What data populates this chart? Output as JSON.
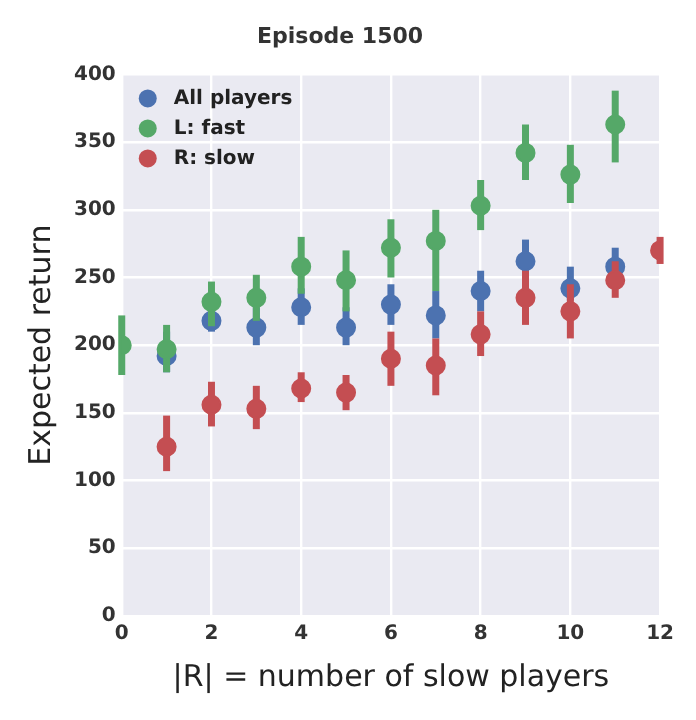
{
  "chart_data": {
    "type": "scatter",
    "title": "Episode 1500",
    "xlabel": "|R| = number of slow players",
    "ylabel": "Expected return",
    "x": [
      0,
      1,
      2,
      3,
      4,
      5,
      6,
      7,
      8,
      9,
      10,
      11,
      12
    ],
    "series": [
      {
        "name": "All players",
        "color": "#4c72b0",
        "values": [
          null,
          192,
          218,
          213,
          228,
          213,
          230,
          222,
          240,
          262,
          242,
          258,
          null
        ],
        "errors": [
          null,
          [
            180,
            210
          ],
          [
            210,
            228
          ],
          [
            200,
            228
          ],
          [
            215,
            242
          ],
          [
            200,
            228
          ],
          [
            215,
            245
          ],
          [
            205,
            240
          ],
          [
            225,
            255
          ],
          [
            248,
            278
          ],
          [
            233,
            258
          ],
          [
            245,
            272
          ],
          null
        ]
      },
      {
        "name": "L: fast",
        "color": "#55a868",
        "values": [
          200,
          197,
          232,
          235,
          258,
          248,
          272,
          277,
          303,
          342,
          326,
          363,
          null
        ],
        "errors": [
          [
            178,
            222
          ],
          [
            180,
            215
          ],
          [
            214,
            247
          ],
          [
            218,
            252
          ],
          [
            238,
            280
          ],
          [
            225,
            270
          ],
          [
            250,
            293
          ],
          [
            240,
            300
          ],
          [
            285,
            322
          ],
          [
            322,
            363
          ],
          [
            305,
            348
          ],
          [
            335,
            388
          ],
          null
        ]
      },
      {
        "name": "R: slow",
        "color": "#c44e52",
        "values": [
          null,
          125,
          156,
          153,
          168,
          165,
          190,
          185,
          208,
          235,
          225,
          248,
          270
        ],
        "errors": [
          null,
          [
            107,
            148
          ],
          [
            140,
            173
          ],
          [
            138,
            170
          ],
          [
            158,
            180
          ],
          [
            152,
            178
          ],
          [
            170,
            210
          ],
          [
            163,
            205
          ],
          [
            192,
            225
          ],
          [
            215,
            255
          ],
          [
            205,
            245
          ],
          [
            235,
            262
          ],
          [
            260,
            280
          ]
        ]
      }
    ],
    "xlim": [
      0,
      12
    ],
    "xticks": [
      0,
      2,
      4,
      6,
      8,
      10,
      12
    ],
    "ylim": [
      0,
      400
    ],
    "yticks": [
      0,
      50,
      100,
      150,
      200,
      250,
      300,
      350,
      400
    ],
    "grid": true,
    "legend": "top left",
    "marker": "circle"
  }
}
